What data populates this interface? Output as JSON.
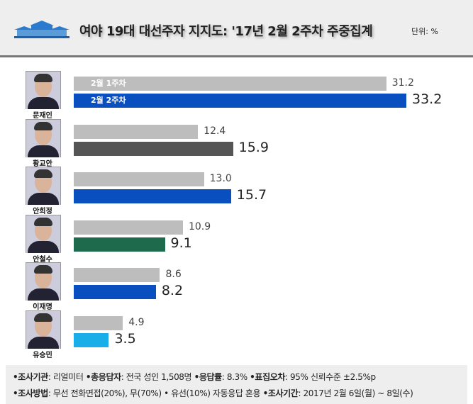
{
  "header": {
    "title": "여야 19대 대선주자 지지도: '17년 2월 2주차 주중집계",
    "unit": "단위: %"
  },
  "chart_data": {
    "type": "bar",
    "title": "여야 19대 대선주자 지지도: '17년 2월 2주차 주중집계",
    "unit": "%",
    "categories": [
      "문재인",
      "황교안",
      "안희정",
      "안철수",
      "이재명",
      "유승민"
    ],
    "series": [
      {
        "name": "2월 1주차",
        "color": "#bdbdbd",
        "values": [
          31.2,
          12.4,
          13.0,
          10.9,
          8.6,
          4.9
        ]
      },
      {
        "name": "2월 2주차",
        "colors": [
          "#0a4fc0",
          "#555555",
          "#0a4fc0",
          "#1d6a4c",
          "#0a4fc0",
          "#1aaee8"
        ],
        "values": [
          33.2,
          15.9,
          15.7,
          9.1,
          8.2,
          3.5
        ]
      }
    ],
    "value_labels_1": [
      "31.2",
      "12.4",
      "13.0",
      "10.9",
      "8.6",
      "4.9"
    ],
    "value_labels_2": [
      "33.2",
      "15.9",
      "15.7",
      "9.1",
      "8.2",
      "3.5"
    ],
    "xlim": [
      0,
      33.2
    ]
  },
  "footer": {
    "line1": [
      {
        "k": "•조사기관",
        "v": ": 리얼미터 "
      },
      {
        "k": "•총응답자",
        "v": ": 전국 성인 1,508명 "
      },
      {
        "k": "•응답률",
        "v": ": 8.3% "
      },
      {
        "k": "•표집오차",
        "v": ": 95% 신뢰수준 ±2.5%p"
      }
    ],
    "line2": [
      {
        "k": "•조사방법",
        "v": ": 무선 전화면접(20%), 무(70%) • 유선(10%) 자동응답 혼용 "
      },
      {
        "k": "•조사기간",
        "v": ": 2017년 2월 6일(월) ~ 8일(수)"
      }
    ]
  }
}
